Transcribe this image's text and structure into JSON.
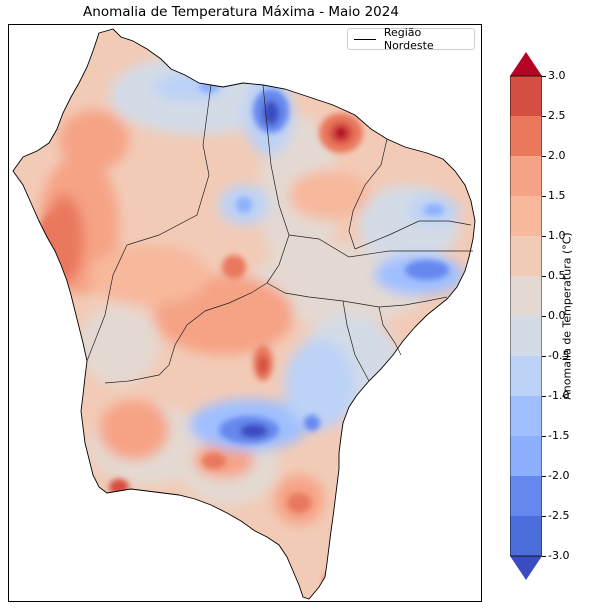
{
  "title": "Anomalia de Temperatura Máxima - Maio 2024",
  "legend": {
    "label": "Região Nordeste"
  },
  "colorbar": {
    "label": "Anomalia de Temperatura (°C)",
    "ticks": [
      "3.0",
      "2.5",
      "2.0",
      "1.5",
      "1.0",
      "0.5",
      "0.0",
      "-0.5",
      "-1.0",
      "-1.5",
      "-2.0",
      "-2.5",
      "-3.0"
    ],
    "colors": [
      "#b40426",
      "#d44e41",
      "#e9785d",
      "#f6a385",
      "#f7b89c",
      "#f2cbb7",
      "#e4d9d2",
      "#d3dbe7",
      "#bcd2f7",
      "#9fbfff",
      "#8db0fe",
      "#6688ee",
      "#4c6edb",
      "#3b4cc0"
    ],
    "extend": "both"
  }
}
